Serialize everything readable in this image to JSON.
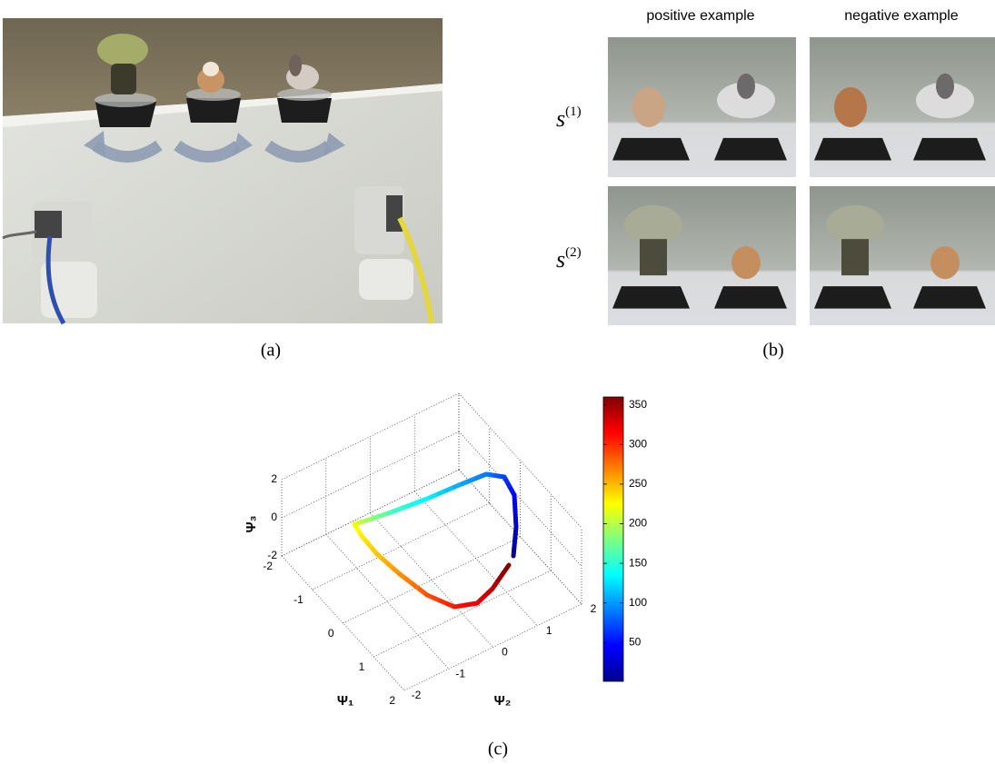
{
  "panels": {
    "a": {
      "label": "(a)"
    },
    "b": {
      "headers": [
        "positive example",
        "negative example"
      ],
      "rows": [
        {
          "symbol": "s",
          "superscript": "(1)"
        },
        {
          "symbol": "s",
          "superscript": "(2)"
        }
      ],
      "label": "(b)"
    },
    "c": {
      "label": "(c)"
    }
  },
  "chart_data": {
    "type": "line3d",
    "xlabel": "Ψ₁",
    "ylabel": "Ψ₂",
    "zlabel": "Ψ₃",
    "xlim": [
      -2,
      2
    ],
    "ylim": [
      -2,
      2
    ],
    "zlim": [
      -2,
      2
    ],
    "xticks": [
      -2,
      -1,
      0,
      1,
      2
    ],
    "yticks": [
      -2,
      -1,
      0,
      1,
      2
    ],
    "zticks": [
      -2,
      0,
      2
    ],
    "grid": true,
    "colormap": "jet",
    "clim": [
      1,
      360
    ],
    "colorbar_ticks": [
      50,
      100,
      150,
      200,
      250,
      300,
      350
    ]
  }
}
